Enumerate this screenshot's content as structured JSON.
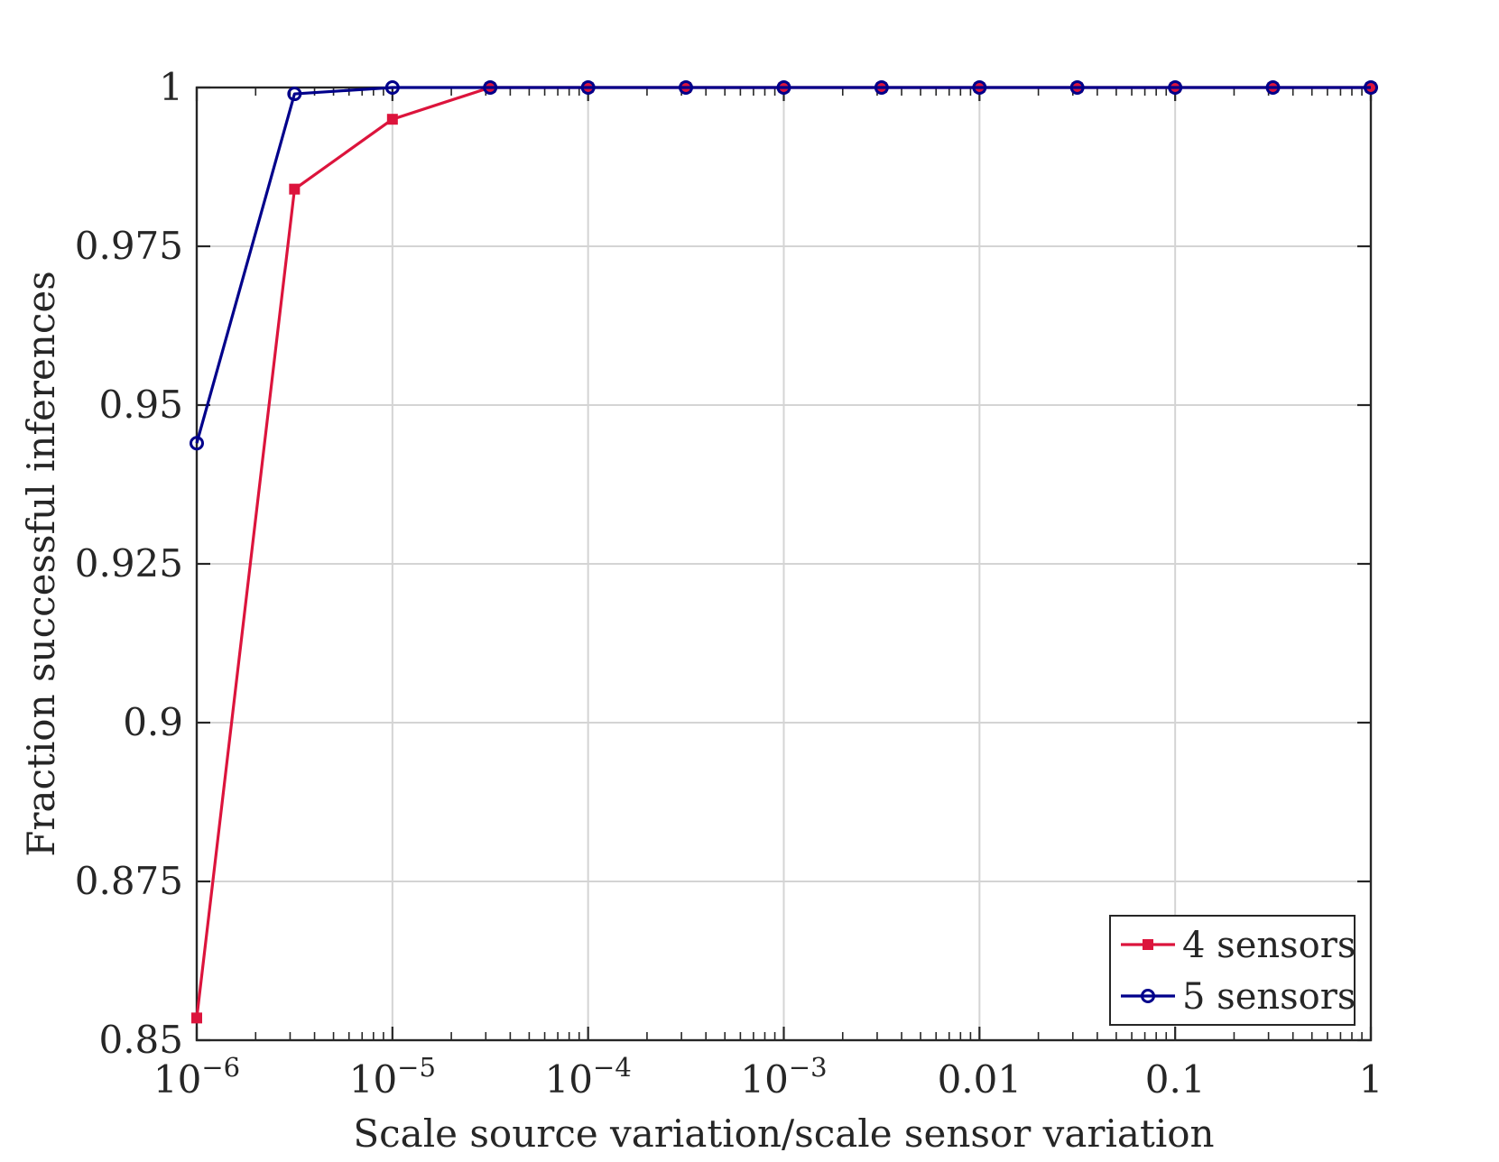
{
  "chart_data": {
    "type": "line",
    "title": "",
    "xlabel": "Scale source variation/scale sensor variation",
    "ylabel": "Fraction successful inferences",
    "x_scale": "log",
    "xlim": [
      1e-06,
      1
    ],
    "ylim": [
      0.85,
      1
    ],
    "grid": true,
    "legend_position": "bottom-right",
    "x_ticks": [
      {
        "value": 1e-06,
        "base": "10",
        "exp": "−6"
      },
      {
        "value": 1e-05,
        "base": "10",
        "exp": "−5"
      },
      {
        "value": 0.0001,
        "base": "10",
        "exp": "−4"
      },
      {
        "value": 0.001,
        "base": "10",
        "exp": "−3"
      },
      {
        "value": 0.01,
        "base": "0.01",
        "exp": ""
      },
      {
        "value": 0.1,
        "base": "0.1",
        "exp": ""
      },
      {
        "value": 1,
        "base": "1",
        "exp": ""
      }
    ],
    "y_ticks": [
      {
        "value": 0.85,
        "label": "0.85"
      },
      {
        "value": 0.875,
        "label": "0.875"
      },
      {
        "value": 0.9,
        "label": "0.9"
      },
      {
        "value": 0.925,
        "label": "0.925"
      },
      {
        "value": 0.95,
        "label": "0.95"
      },
      {
        "value": 0.975,
        "label": "0.975"
      },
      {
        "value": 1,
        "label": "1"
      }
    ],
    "x": [
      1e-06,
      3.16e-06,
      1e-05,
      3.16e-05,
      0.0001,
      0.000316,
      0.001,
      0.00316,
      0.01,
      0.0316,
      0.1,
      0.316,
      1
    ],
    "series": [
      {
        "name": "4 sensors",
        "color": "#dc143c",
        "marker": "square",
        "values": [
          0.8535,
          0.984,
          0.995,
          1,
          1,
          1,
          1,
          1,
          1,
          1,
          1,
          1,
          1
        ]
      },
      {
        "name": "5 sensors",
        "color": "#00008b",
        "marker": "circle",
        "values": [
          0.944,
          0.999,
          1,
          1,
          1,
          1,
          1,
          1,
          1,
          1,
          1,
          1,
          1
        ]
      }
    ]
  }
}
